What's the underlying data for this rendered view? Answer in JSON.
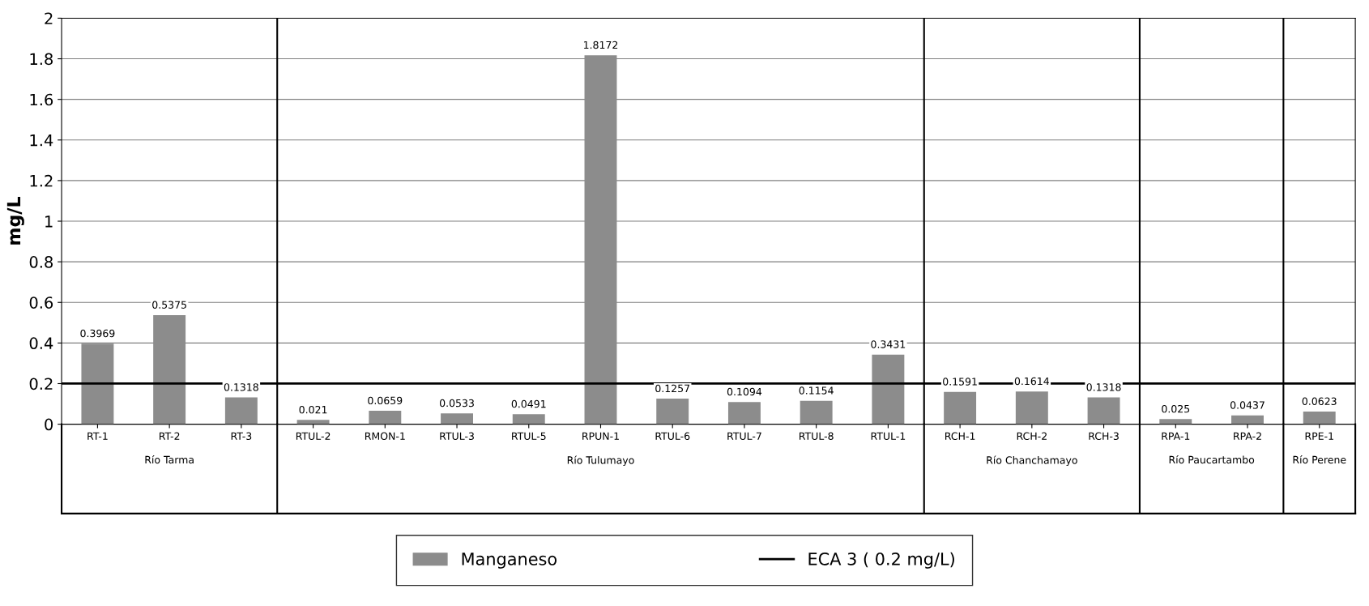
{
  "chart_data": {
    "type": "bar",
    "ylabel": "mg/L",
    "categories": [
      "RT-1",
      "RT-2",
      "RT-3",
      "RTUL-2",
      "RMON-1",
      "RTUL-3",
      "RTUL-5",
      "RPUN-1",
      "RTUL-6",
      "RTUL-7",
      "RTUL-8",
      "RTUL-1",
      "RCH-1",
      "RCH-2",
      "RCH-3",
      "RPA-1",
      "RPA-2",
      "RPE-1"
    ],
    "series": [
      {
        "name": "Manganeso",
        "color": "#8c8c8c",
        "values": [
          0.3969,
          0.5375,
          0.1318,
          0.021,
          0.0659,
          0.0533,
          0.0491,
          1.8172,
          0.1257,
          0.1094,
          0.1154,
          0.3431,
          0.1591,
          0.1614,
          0.1318,
          0.025,
          0.0437,
          0.0623
        ]
      }
    ],
    "data_labels": true,
    "ylim": [
      0,
      2
    ],
    "yticks": [
      0,
      0.2,
      0.4,
      0.6,
      0.8,
      1,
      1.2,
      1.4,
      1.6,
      1.8,
      2
    ],
    "ref_lines": [
      {
        "axis": "y",
        "value": 0.2,
        "label": "ECA 3 ( 0.2 mg/L)",
        "color": "#000000"
      }
    ],
    "annotations": [
      "Río Tarma",
      "Río Tulumayo",
      "Río Chanchamayo",
      "Río Paucartambo",
      "Río Perene"
    ],
    "grid": "y",
    "legend": "bottom"
  }
}
